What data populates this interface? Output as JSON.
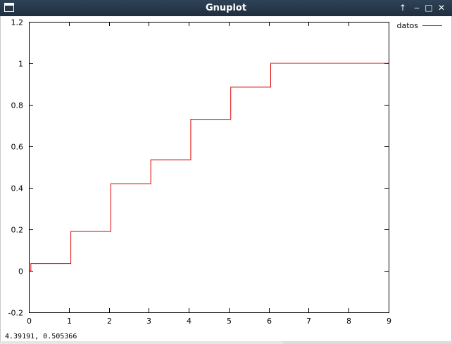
{
  "window": {
    "title": "Gnuplot",
    "buttons": [
      {
        "name": "raise",
        "glyph": "↑"
      },
      {
        "name": "minimize",
        "glyph": "‒"
      },
      {
        "name": "maximize",
        "glyph": "□"
      },
      {
        "name": "close",
        "glyph": "✕"
      }
    ]
  },
  "status": {
    "coordinates": "4.39191,  0.505366"
  },
  "chart_data": {
    "type": "line",
    "step": true,
    "line_color": "#e00000",
    "xlim": [
      0,
      9
    ],
    "ylim": [
      -0.2,
      1.2
    ],
    "x_ticks": [
      0,
      1,
      2,
      3,
      4,
      5,
      6,
      7,
      8,
      9
    ],
    "x_tick_labels": [
      "0",
      "1",
      "2",
      "3",
      "4",
      "5",
      "6",
      "7",
      "8",
      "9"
    ],
    "y_ticks": [
      -0.2,
      0,
      0.2,
      0.4,
      0.6,
      0.8,
      1,
      1.2
    ],
    "y_tick_labels": [
      "-0.2",
      "0",
      "0.2",
      "0.4",
      "0.6",
      "0.8",
      "1",
      "1.2"
    ],
    "legend": "top-right",
    "grid": false,
    "series": [
      {
        "name": "datos",
        "x": [
          0,
          0.05,
          1.05,
          2.05,
          3.05,
          4.05,
          5.05,
          6.05,
          9
        ],
        "y": [
          0,
          0.035,
          0.19,
          0.42,
          0.535,
          0.73,
          0.885,
          1.0,
          1.0
        ]
      }
    ]
  }
}
